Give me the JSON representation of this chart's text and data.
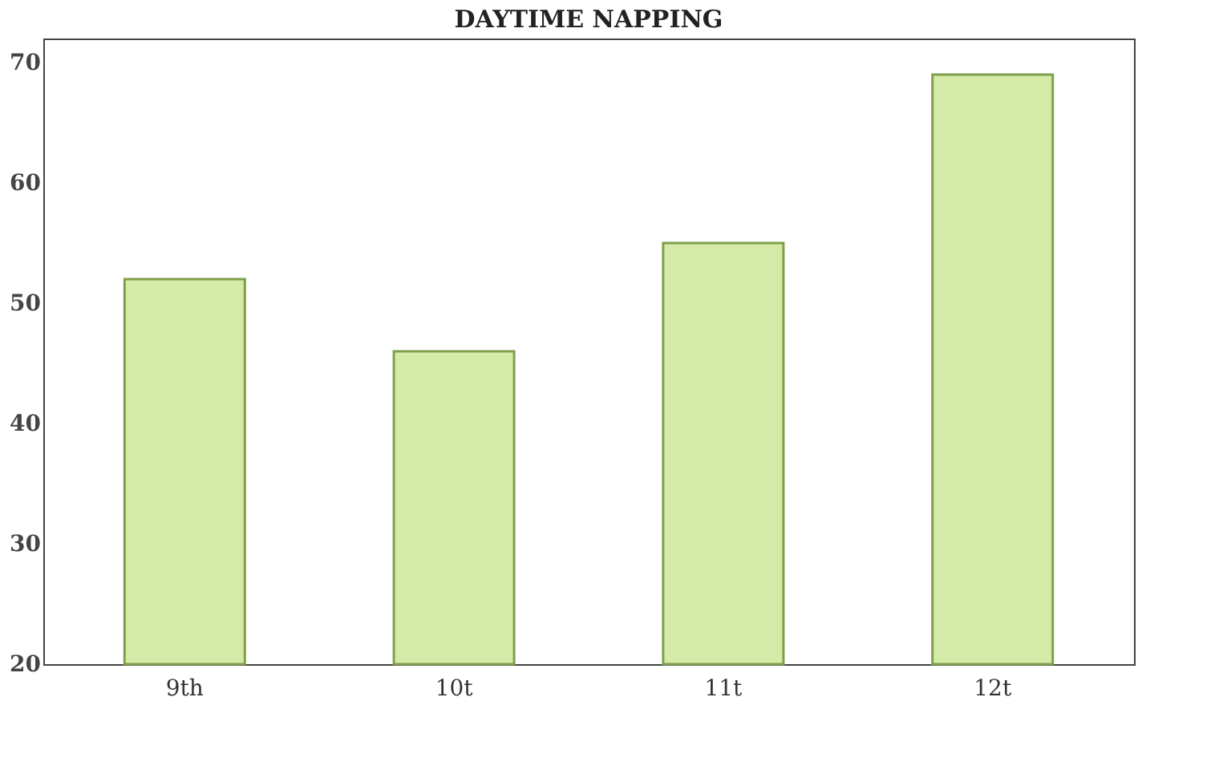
{
  "chart_data": {
    "type": "bar",
    "title": "DAYTIME NAPPING",
    "categories": [
      "9th",
      "10t",
      "11t",
      "12t"
    ],
    "values": [
      52,
      46,
      55,
      69
    ],
    "color": "#d6eaa8",
    "ylim": [
      20,
      72
    ],
    "yticks": [
      20,
      30,
      40,
      50,
      60,
      70
    ],
    "grid": false
  }
}
